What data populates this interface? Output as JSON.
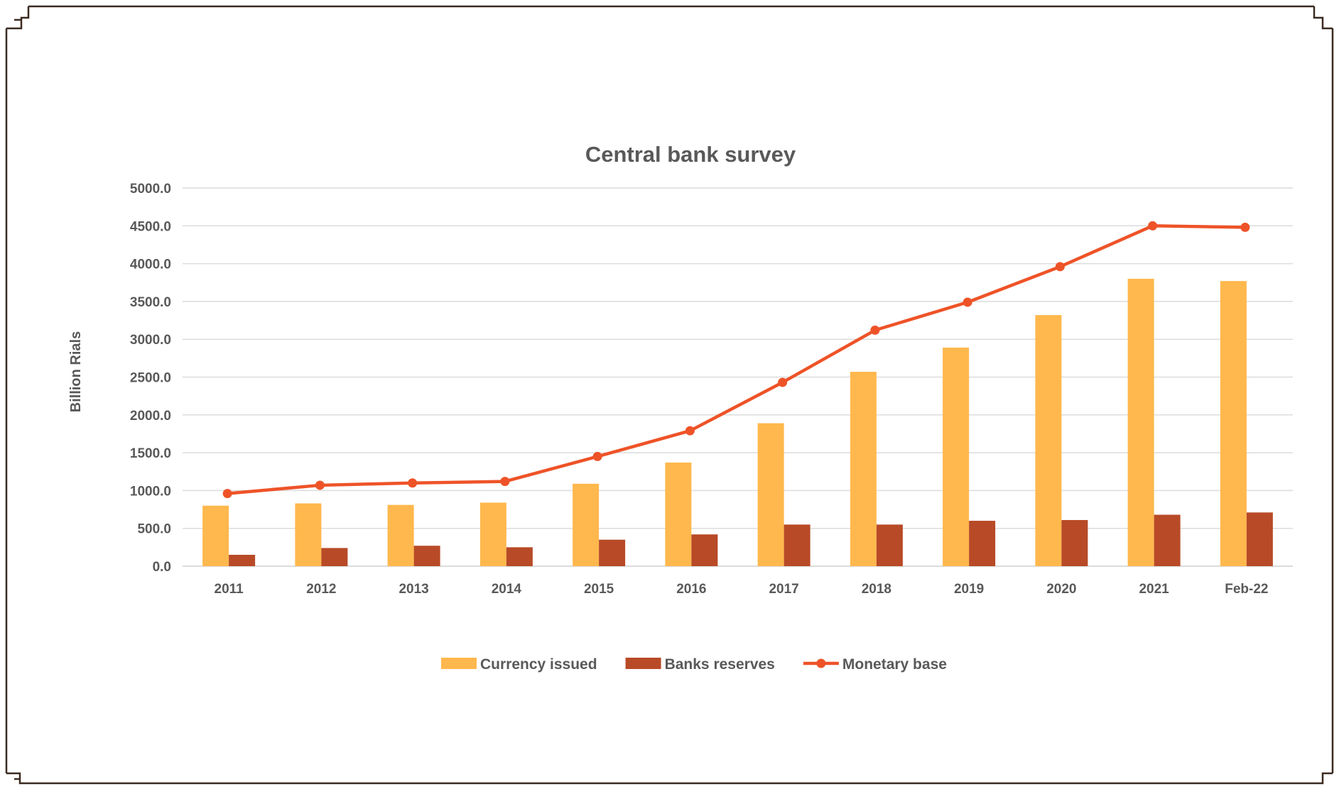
{
  "chart_data": {
    "type": "bar",
    "title": "Central bank survey",
    "xlabel": "",
    "ylabel": "Billion Rials",
    "ylim": [
      0,
      5000
    ],
    "yticks": [
      "0.0",
      "500.0",
      "1000.0",
      "1500.0",
      "2000.0",
      "2500.0",
      "3000.0",
      "3500.0",
      "4000.0",
      "4500.0",
      "5000.0"
    ],
    "categories": [
      "2011",
      "2012",
      "2013",
      "2014",
      "2015",
      "2016",
      "2017",
      "2018",
      "2019",
      "2020",
      "2021",
      "Feb-22"
    ],
    "series": [
      {
        "name": "Currency issued",
        "kind": "bar",
        "color": "#FFB84D",
        "values": [
          800,
          830,
          810,
          840,
          1090,
          1370,
          1890,
          2570,
          2890,
          3320,
          3800,
          3770
        ]
      },
      {
        "name": "Banks reserves",
        "kind": "bar",
        "color": "#B84A27",
        "values": [
          150,
          240,
          270,
          250,
          350,
          420,
          550,
          550,
          600,
          610,
          680,
          710
        ]
      },
      {
        "name": "Monetary base",
        "kind": "line",
        "color": "#EE5328",
        "values": [
          960,
          1070,
          1100,
          1120,
          1450,
          1790,
          2430,
          3120,
          3490,
          3960,
          4500,
          4480
        ]
      }
    ],
    "grid": true,
    "legend_position": "bottom"
  }
}
